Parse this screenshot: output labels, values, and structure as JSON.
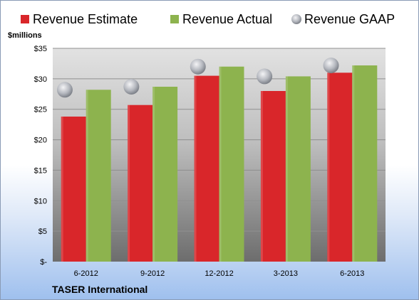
{
  "chart_data": {
    "type": "bar",
    "title": "",
    "unit_label": "$millions",
    "company": "TASER International",
    "categories": [
      "6-2012",
      "9-2012",
      "12-2012",
      "3-2013",
      "6-2013"
    ],
    "series": [
      {
        "name": "Revenue Estimate",
        "kind": "bar",
        "color": "#d9262a",
        "values": [
          23.8,
          25.7,
          30.5,
          28.0,
          31.0
        ]
      },
      {
        "name": "Revenue Actual",
        "kind": "bar",
        "color": "#8db34e",
        "values": [
          28.2,
          28.7,
          32.0,
          30.4,
          32.2
        ]
      },
      {
        "name": "Revenue GAAP",
        "kind": "marker",
        "color": "#b8bcc4",
        "values": [
          28.2,
          28.7,
          32.0,
          30.4,
          32.2
        ]
      }
    ],
    "yticks": [
      "$-",
      "$5",
      "$10",
      "$15",
      "$20",
      "$25",
      "$30",
      "$35"
    ],
    "ylim": [
      0,
      35
    ],
    "grid": true,
    "legend_position": "top"
  }
}
